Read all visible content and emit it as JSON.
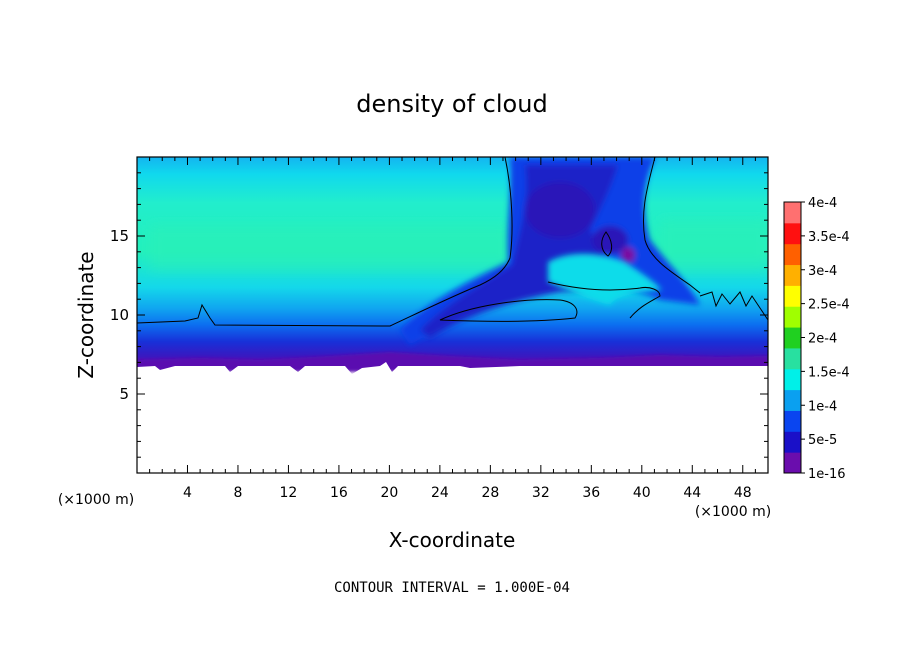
{
  "chart_data": {
    "type": "heatmap",
    "title": "density of cloud",
    "xlabel": "X-coordinate",
    "ylabel": "Z-coordinate",
    "x_unit": "(×1000 m)",
    "x_unit_right": "(×1000 m)",
    "xlim": [
      0,
      50
    ],
    "ylim": [
      0,
      20
    ],
    "x_ticks": [
      4,
      8,
      12,
      16,
      20,
      24,
      28,
      32,
      36,
      40,
      44,
      48
    ],
    "x_tick_labels": [
      "4",
      "8",
      "12",
      "16",
      "20",
      "24",
      "28",
      "32",
      "36",
      "40",
      "44",
      "48"
    ],
    "y_ticks": [
      5,
      10,
      15
    ],
    "y_tick_labels": [
      "5",
      "10",
      "15"
    ],
    "colorbar": {
      "levels": [
        1e-16,
        5e-05,
        0.0001,
        0.00015,
        0.0002,
        0.00025,
        0.0003,
        0.00035,
        0.0004
      ],
      "labels": [
        "1e-16",
        "5e-5",
        "1e-4",
        "1.5e-4",
        "2e-4",
        "2.5e-4",
        "3e-4",
        "3.5e-4",
        "4e-4"
      ],
      "colors": [
        "#6a0dad",
        "#1a10c8",
        "#0a45f0",
        "#0aa0f0",
        "#00f0e8",
        "#28e0a0",
        "#20d020",
        "#a0ff00",
        "#ffff00",
        "#ffb000",
        "#ff6000",
        "#ff1010",
        "#ff7070"
      ]
    },
    "annotation": "CONTOUR INTERVAL = 1.000E-04"
  }
}
